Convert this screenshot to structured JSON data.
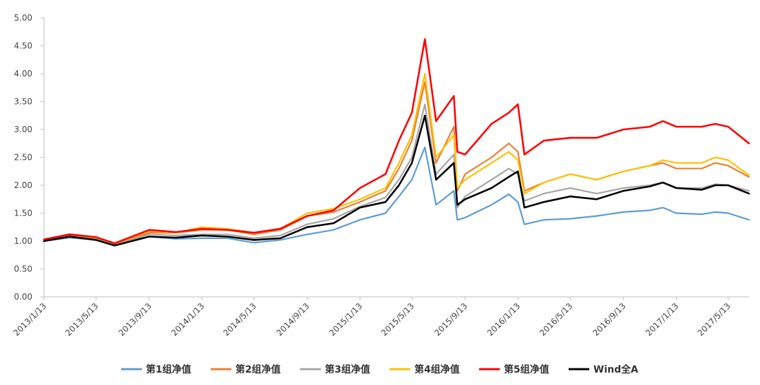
{
  "chart_data": {
    "type": "line",
    "title": "",
    "xlabel": "",
    "ylabel": "",
    "ylim": [
      0,
      5.0
    ],
    "y_ticks": [
      "0.00",
      "0.50",
      "1.00",
      "1.50",
      "2.00",
      "2.50",
      "3.00",
      "3.50",
      "4.00",
      "4.50",
      "5.00"
    ],
    "x_ticks": [
      "2013/1/13",
      "2013/5/13",
      "2013/9/13",
      "2014/1/13",
      "2014/5/13",
      "2014/9/13",
      "2015/1/13",
      "2015/5/13",
      "2015/9/13",
      "2016/1/13",
      "2016/5/13",
      "2016/9/13",
      "2017/1/13",
      "2017/5/13"
    ],
    "xlim": [
      "2013/1/13",
      "2017/6/30"
    ],
    "grid": false,
    "legend_position": "bottom",
    "x": [
      "2013/1/13",
      "2013/3/13",
      "2013/5/13",
      "2013/6/25",
      "2013/9/13",
      "2013/11/13",
      "2014/1/13",
      "2014/3/13",
      "2014/5/13",
      "2014/7/13",
      "2014/9/13",
      "2014/11/13",
      "2015/1/13",
      "2015/3/13",
      "2015/4/13",
      "2015/5/13",
      "2015/6/12",
      "2015/7/8",
      "2015/8/18",
      "2015/8/26",
      "2015/9/13",
      "2015/11/13",
      "2015/12/23",
      "2016/1/13",
      "2016/1/28",
      "2016/3/13",
      "2016/5/13",
      "2016/7/13",
      "2016/9/13",
      "2016/11/13",
      "2016/12/13",
      "2017/1/13",
      "2017/3/13",
      "2017/4/13",
      "2017/5/13",
      "2017/6/30"
    ],
    "series": [
      {
        "name": "第1组净值",
        "color": "#5b9bd5",
        "values": [
          1.0,
          1.06,
          1.02,
          0.92,
          1.08,
          1.04,
          1.05,
          1.05,
          0.97,
          1.02,
          1.12,
          1.2,
          1.38,
          1.5,
          1.8,
          2.1,
          2.68,
          1.65,
          1.9,
          1.38,
          1.42,
          1.65,
          1.84,
          1.7,
          1.3,
          1.38,
          1.4,
          1.45,
          1.52,
          1.55,
          1.6,
          1.5,
          1.48,
          1.52,
          1.5,
          1.38
        ]
      },
      {
        "name": "第2组净值",
        "color": "#ed7d31",
        "values": [
          1.02,
          1.1,
          1.05,
          0.95,
          1.15,
          1.15,
          1.2,
          1.2,
          1.12,
          1.2,
          1.45,
          1.52,
          1.7,
          1.9,
          2.3,
          2.8,
          3.85,
          2.4,
          3.05,
          1.9,
          2.2,
          2.5,
          2.75,
          2.6,
          1.9,
          2.05,
          2.2,
          2.1,
          2.25,
          2.35,
          2.4,
          2.3,
          2.3,
          2.4,
          2.35,
          2.15
        ]
      },
      {
        "name": "第3组净值",
        "color": "#a5a5a5",
        "values": [
          1.01,
          1.08,
          1.03,
          0.93,
          1.12,
          1.1,
          1.12,
          1.12,
          1.05,
          1.1,
          1.3,
          1.4,
          1.62,
          1.78,
          2.1,
          2.5,
          3.45,
          2.2,
          2.55,
          1.6,
          1.8,
          2.1,
          2.3,
          2.2,
          1.72,
          1.85,
          1.95,
          1.85,
          1.95,
          2.0,
          2.05,
          1.95,
          1.95,
          2.02,
          2.0,
          1.9
        ]
      },
      {
        "name": "第4组净值",
        "color": "#ffc000",
        "values": [
          1.03,
          1.12,
          1.06,
          0.96,
          1.18,
          1.15,
          1.25,
          1.22,
          1.15,
          1.22,
          1.5,
          1.58,
          1.75,
          1.95,
          2.4,
          2.9,
          4.0,
          2.5,
          2.9,
          1.95,
          2.1,
          2.4,
          2.6,
          2.45,
          1.85,
          2.05,
          2.2,
          2.1,
          2.25,
          2.35,
          2.45,
          2.4,
          2.4,
          2.5,
          2.45,
          2.18
        ]
      },
      {
        "name": "第5组净值",
        "color": "#ff0000",
        "values": [
          1.03,
          1.12,
          1.07,
          0.96,
          1.2,
          1.16,
          1.22,
          1.2,
          1.15,
          1.22,
          1.45,
          1.55,
          1.95,
          2.2,
          2.8,
          3.3,
          4.62,
          3.15,
          3.6,
          2.6,
          2.55,
          3.1,
          3.3,
          3.45,
          2.55,
          2.8,
          2.85,
          2.85,
          3.0,
          3.05,
          3.15,
          3.05,
          3.05,
          3.1,
          3.05,
          2.75
        ]
      },
      {
        "name": "Wind全A",
        "color": "#000000",
        "values": [
          1.0,
          1.08,
          1.02,
          0.92,
          1.08,
          1.06,
          1.1,
          1.08,
          1.02,
          1.05,
          1.25,
          1.32,
          1.6,
          1.7,
          2.0,
          2.4,
          3.25,
          2.1,
          2.4,
          1.65,
          1.75,
          1.95,
          2.15,
          2.25,
          1.6,
          1.7,
          1.8,
          1.75,
          1.9,
          1.98,
          2.05,
          1.95,
          1.92,
          2.0,
          2.0,
          1.85
        ]
      }
    ]
  }
}
